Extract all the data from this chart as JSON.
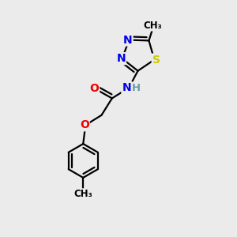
{
  "bg_color": "#ebebeb",
  "atom_colors": {
    "C": "#000000",
    "N": "#0000ee",
    "O": "#ee0000",
    "S": "#cccc00",
    "H": "#6c9c9c"
  },
  "bond_color": "#000000",
  "bond_width": 1.6,
  "figsize": [
    3.0,
    3.0
  ],
  "dpi": 100,
  "xlim": [
    0,
    10
  ],
  "ylim": [
    0,
    10
  ]
}
